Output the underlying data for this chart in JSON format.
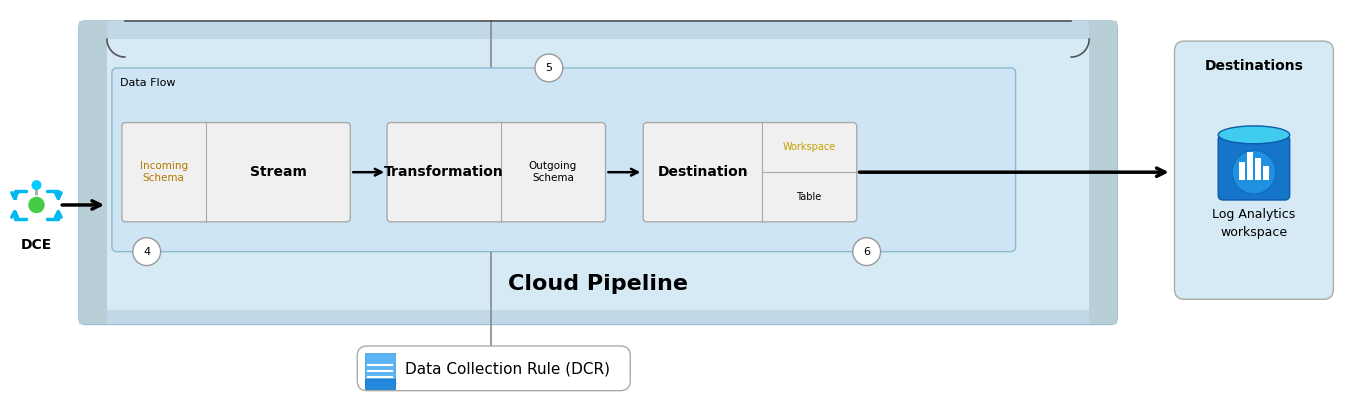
{
  "title": "Data Collection Rule (DCR)",
  "cloud_pipeline_label": "Cloud Pipeline",
  "dce_label": "DCE",
  "data_flow_label": "Data Flow",
  "destinations_label": "Destinations",
  "log_analytics_label": "Log Analytics\nworkspace",
  "bg_color": "#ffffff",
  "pipeline_box_color": "#d6eaf5",
  "pipeline_border_color": "#a0bece",
  "pipeline_side_color": "#b8cfd8",
  "dataflow_box_color": "#d6eaf5",
  "dataflow_border_color": "#a0bece",
  "flow_cell_color": "#f0f0f0",
  "flow_cell_border": "#aaaaaa",
  "dcr_box_color": "#ffffff",
  "dcr_border_color": "#aaaaaa",
  "dest_box_color": "#d6eaf5",
  "dest_border_color": "#aaaaaa",
  "workspace_text_color": "#c8a000",
  "brace_color": "#555555",
  "arrow_color": "#000000"
}
